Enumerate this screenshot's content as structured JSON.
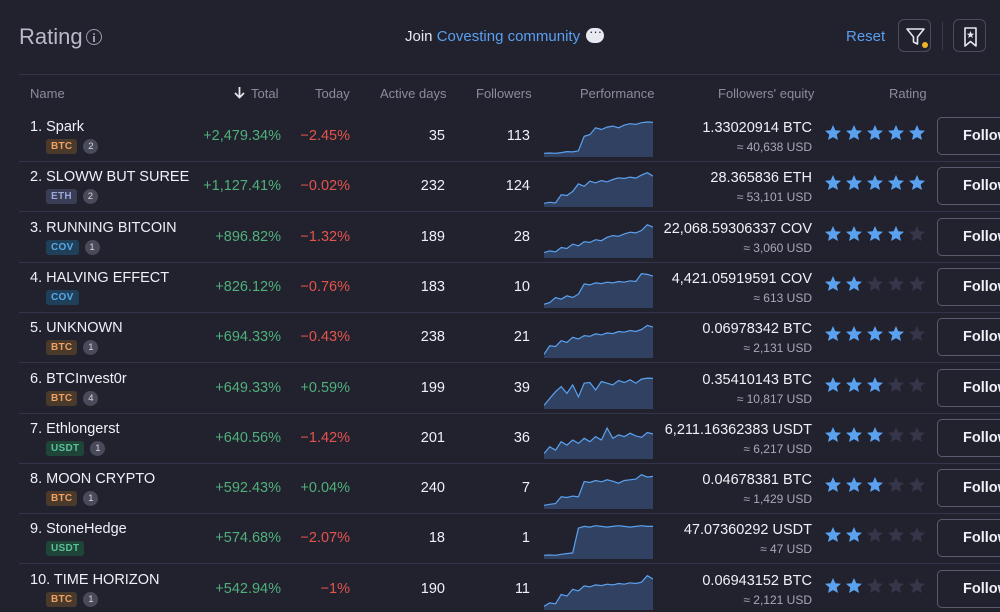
{
  "header": {
    "title": "Rating",
    "join_prefix": "Join",
    "join_link": "Covesting community",
    "reset_label": "Reset"
  },
  "columns": {
    "name": "Name",
    "total": "Total",
    "today": "Today",
    "active_days": "Active days",
    "followers": "Followers",
    "performance": "Performance",
    "followers_equity": "Followers' equity",
    "rating": "Rating"
  },
  "follow_label": "Follow",
  "colors": {
    "accent": "#5a9ff0",
    "positive": "#4fb07a",
    "negative": "#e5534b",
    "star_on": "#5aa2f0",
    "star_off": "#35364a"
  },
  "rows": [
    {
      "name": "1. Spark",
      "currency": "BTC",
      "count": "2",
      "total": "+2,479.34%",
      "today": "−2.45%",
      "today_sign": "neg",
      "active_days": "35",
      "followers": "113",
      "equity": "1.33020914 BTC",
      "equity_usd": "≈ 40,638 USD",
      "rating": 5,
      "spark": [
        0.05,
        0.06,
        0.05,
        0.07,
        0.1,
        0.09,
        0.12,
        0.55,
        0.6,
        0.8,
        0.75,
        0.82,
        0.85,
        0.8,
        0.88,
        0.92,
        0.9,
        0.95,
        0.97,
        0.96
      ]
    },
    {
      "name": "2. SLOWW BUT SUREE",
      "currency": "ETH",
      "count": "2",
      "total": "+1,127.41%",
      "today": "−0.02%",
      "today_sign": "neg",
      "active_days": "232",
      "followers": "124",
      "equity": "28.365836 ETH",
      "equity_usd": "≈ 53,101 USD",
      "rating": 5,
      "spark": [
        0.05,
        0.08,
        0.06,
        0.3,
        0.28,
        0.4,
        0.62,
        0.55,
        0.7,
        0.65,
        0.72,
        0.68,
        0.75,
        0.8,
        0.78,
        0.82,
        0.79,
        0.88,
        0.95,
        0.85
      ]
    },
    {
      "name": "3. RUNNING BITCOIN",
      "currency": "COV",
      "count": "1",
      "total": "+896.82%",
      "today": "−1.32%",
      "today_sign": "neg",
      "active_days": "189",
      "followers": "28",
      "equity": "22,068.59306337 COV",
      "equity_usd": "≈ 3,060 USD",
      "rating": 4,
      "spark": [
        0.1,
        0.15,
        0.12,
        0.25,
        0.22,
        0.35,
        0.3,
        0.42,
        0.4,
        0.48,
        0.45,
        0.55,
        0.6,
        0.58,
        0.65,
        0.7,
        0.68,
        0.75,
        0.92,
        0.85
      ]
    },
    {
      "name": "4. HALVING EFFECT",
      "currency": "COV",
      "count": "",
      "total": "+826.12%",
      "today": "−0.76%",
      "today_sign": "neg",
      "active_days": "183",
      "followers": "10",
      "equity": "4,421.05919591 COV",
      "equity_usd": "≈ 613 USD",
      "rating": 2,
      "spark": [
        0.05,
        0.1,
        0.25,
        0.2,
        0.3,
        0.25,
        0.35,
        0.65,
        0.62,
        0.68,
        0.66,
        0.7,
        0.68,
        0.72,
        0.7,
        0.74,
        0.72,
        0.95,
        0.93,
        0.88
      ]
    },
    {
      "name": "5. UNKNOWN",
      "currency": "BTC",
      "count": "1",
      "total": "+694.33%",
      "today": "−0.43%",
      "today_sign": "neg",
      "active_days": "238",
      "followers": "21",
      "equity": "0.06978342 BTC",
      "equity_usd": "≈ 2,131 USD",
      "rating": 4,
      "spark": [
        0.05,
        0.3,
        0.28,
        0.45,
        0.4,
        0.55,
        0.5,
        0.6,
        0.58,
        0.65,
        0.62,
        0.68,
        0.66,
        0.72,
        0.7,
        0.75,
        0.72,
        0.78,
        0.9,
        0.85
      ]
    },
    {
      "name": "6. BTCInvest0r",
      "currency": "BTC",
      "count": "4",
      "total": "+649.33%",
      "today": "+0.59%",
      "today_sign": "pos",
      "active_days": "199",
      "followers": "39",
      "equity": "0.35410143 BTC",
      "equity_usd": "≈ 10,817 USD",
      "rating": 3,
      "spark": [
        0.05,
        0.25,
        0.45,
        0.6,
        0.4,
        0.65,
        0.3,
        0.7,
        0.72,
        0.5,
        0.75,
        0.7,
        0.65,
        0.78,
        0.72,
        0.8,
        0.7,
        0.82,
        0.85,
        0.84
      ]
    },
    {
      "name": "7. Ethlongerst",
      "currency": "USDT",
      "count": "1",
      "total": "+640.56%",
      "today": "−1.42%",
      "today_sign": "neg",
      "active_days": "201",
      "followers": "36",
      "equity": "6,211.16362383 USDT",
      "equity_usd": "≈ 6,217 USD",
      "rating": 3,
      "spark": [
        0.1,
        0.3,
        0.2,
        0.45,
        0.35,
        0.5,
        0.4,
        0.55,
        0.45,
        0.6,
        0.5,
        0.85,
        0.55,
        0.65,
        0.6,
        0.7,
        0.62,
        0.58,
        0.72,
        0.68
      ]
    },
    {
      "name": "8. MOON CRYPTO",
      "currency": "BTC",
      "count": "1",
      "total": "+592.43%",
      "today": "+0.04%",
      "today_sign": "pos",
      "active_days": "240",
      "followers": "7",
      "equity": "0.04678381 BTC",
      "equity_usd": "≈ 1,429 USD",
      "rating": 3,
      "spark": [
        0.05,
        0.08,
        0.1,
        0.3,
        0.28,
        0.32,
        0.3,
        0.75,
        0.72,
        0.78,
        0.74,
        0.8,
        0.76,
        0.7,
        0.78,
        0.8,
        0.82,
        0.95,
        0.88,
        0.9
      ]
    },
    {
      "name": "9. StoneHedge",
      "currency": "USDT",
      "count": "",
      "total": "+574.68%",
      "today": "−2.07%",
      "today_sign": "neg",
      "active_days": "18",
      "followers": "1",
      "equity": "47.07360292 USDT",
      "equity_usd": "≈ 47 USD",
      "rating": 2,
      "spark": [
        0.05,
        0.06,
        0.05,
        0.08,
        0.1,
        0.12,
        0.85,
        0.9,
        0.88,
        0.92,
        0.9,
        0.88,
        0.9,
        0.92,
        0.9,
        0.88,
        0.9,
        0.92,
        0.9,
        0.9
      ]
    },
    {
      "name": "10. TIME HORIZON",
      "currency": "BTC",
      "count": "1",
      "total": "+542.94%",
      "today": "−1%",
      "today_sign": "neg",
      "active_days": "190",
      "followers": "11",
      "equity": "0.06943152 BTC",
      "equity_usd": "≈ 2,121 USD",
      "rating": 2,
      "spark": [
        0.05,
        0.15,
        0.12,
        0.4,
        0.35,
        0.55,
        0.5,
        0.65,
        0.62,
        0.68,
        0.66,
        0.7,
        0.68,
        0.72,
        0.7,
        0.74,
        0.72,
        0.76,
        0.95,
        0.85
      ]
    }
  ]
}
